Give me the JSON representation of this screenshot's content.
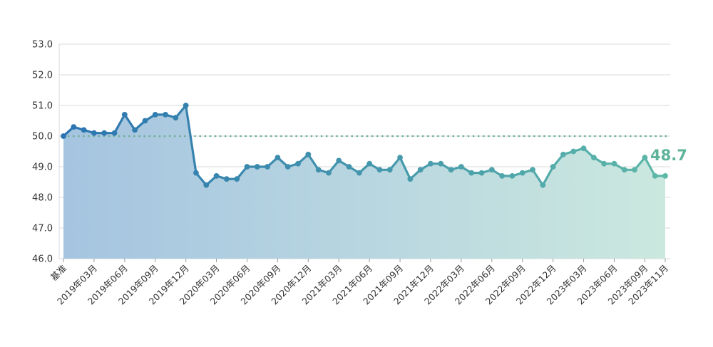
{
  "chart_data": {
    "type": "area",
    "title": "",
    "xlabel": "",
    "ylabel": "",
    "ylim": [
      46.0,
      53.0
    ],
    "yticks": [
      "53.0",
      "52.0",
      "51.0",
      "50.0",
      "49.0",
      "48.0",
      "47.0",
      "46.0"
    ],
    "grid": true,
    "reference_line": 50.0,
    "x_tick_labels": [
      "基准",
      "2019年03月",
      "2019年06月",
      "2019年09月",
      "2019年12月",
      "2020年03月",
      "2020年06月",
      "2020年09月",
      "2020年12月",
      "2021年03月",
      "2021年06月",
      "2021年09月",
      "2021年12月",
      "2022年03月",
      "2022年06月",
      "2022年09月",
      "2022年12月",
      "2023年03月",
      "2023年06月",
      "2023年09月",
      "2023年11月"
    ],
    "last_value_label": "48.7",
    "colors": {
      "line_start": "#2b74b1",
      "line_end": "#5db8a8",
      "area_start": "#a5c4e0",
      "area_end": "#cbe8df",
      "reference": "#6aaf90",
      "label": "#5db39a",
      "grid": "#d9d9d9"
    },
    "series": [
      {
        "values": [
          50.0,
          50.3,
          50.2,
          50.1,
          50.1,
          50.1,
          50.7,
          50.2,
          50.5,
          50.7,
          50.7,
          50.6,
          51.0,
          48.8,
          48.4,
          48.7,
          48.6,
          48.6,
          49.0,
          49.0,
          49.0,
          49.3,
          49.0,
          49.1,
          49.4,
          48.9,
          48.8,
          49.2,
          49.0,
          48.8,
          49.1,
          48.9,
          48.9,
          49.3,
          48.6,
          48.9,
          49.1,
          49.1,
          48.9,
          49.0,
          48.8,
          48.8,
          48.9,
          48.7,
          48.7,
          48.8,
          48.9,
          48.4,
          49.0,
          49.4,
          49.5,
          49.6,
          49.3,
          49.1,
          49.1,
          48.9,
          48.9,
          49.3,
          48.7,
          48.7
        ]
      }
    ]
  }
}
